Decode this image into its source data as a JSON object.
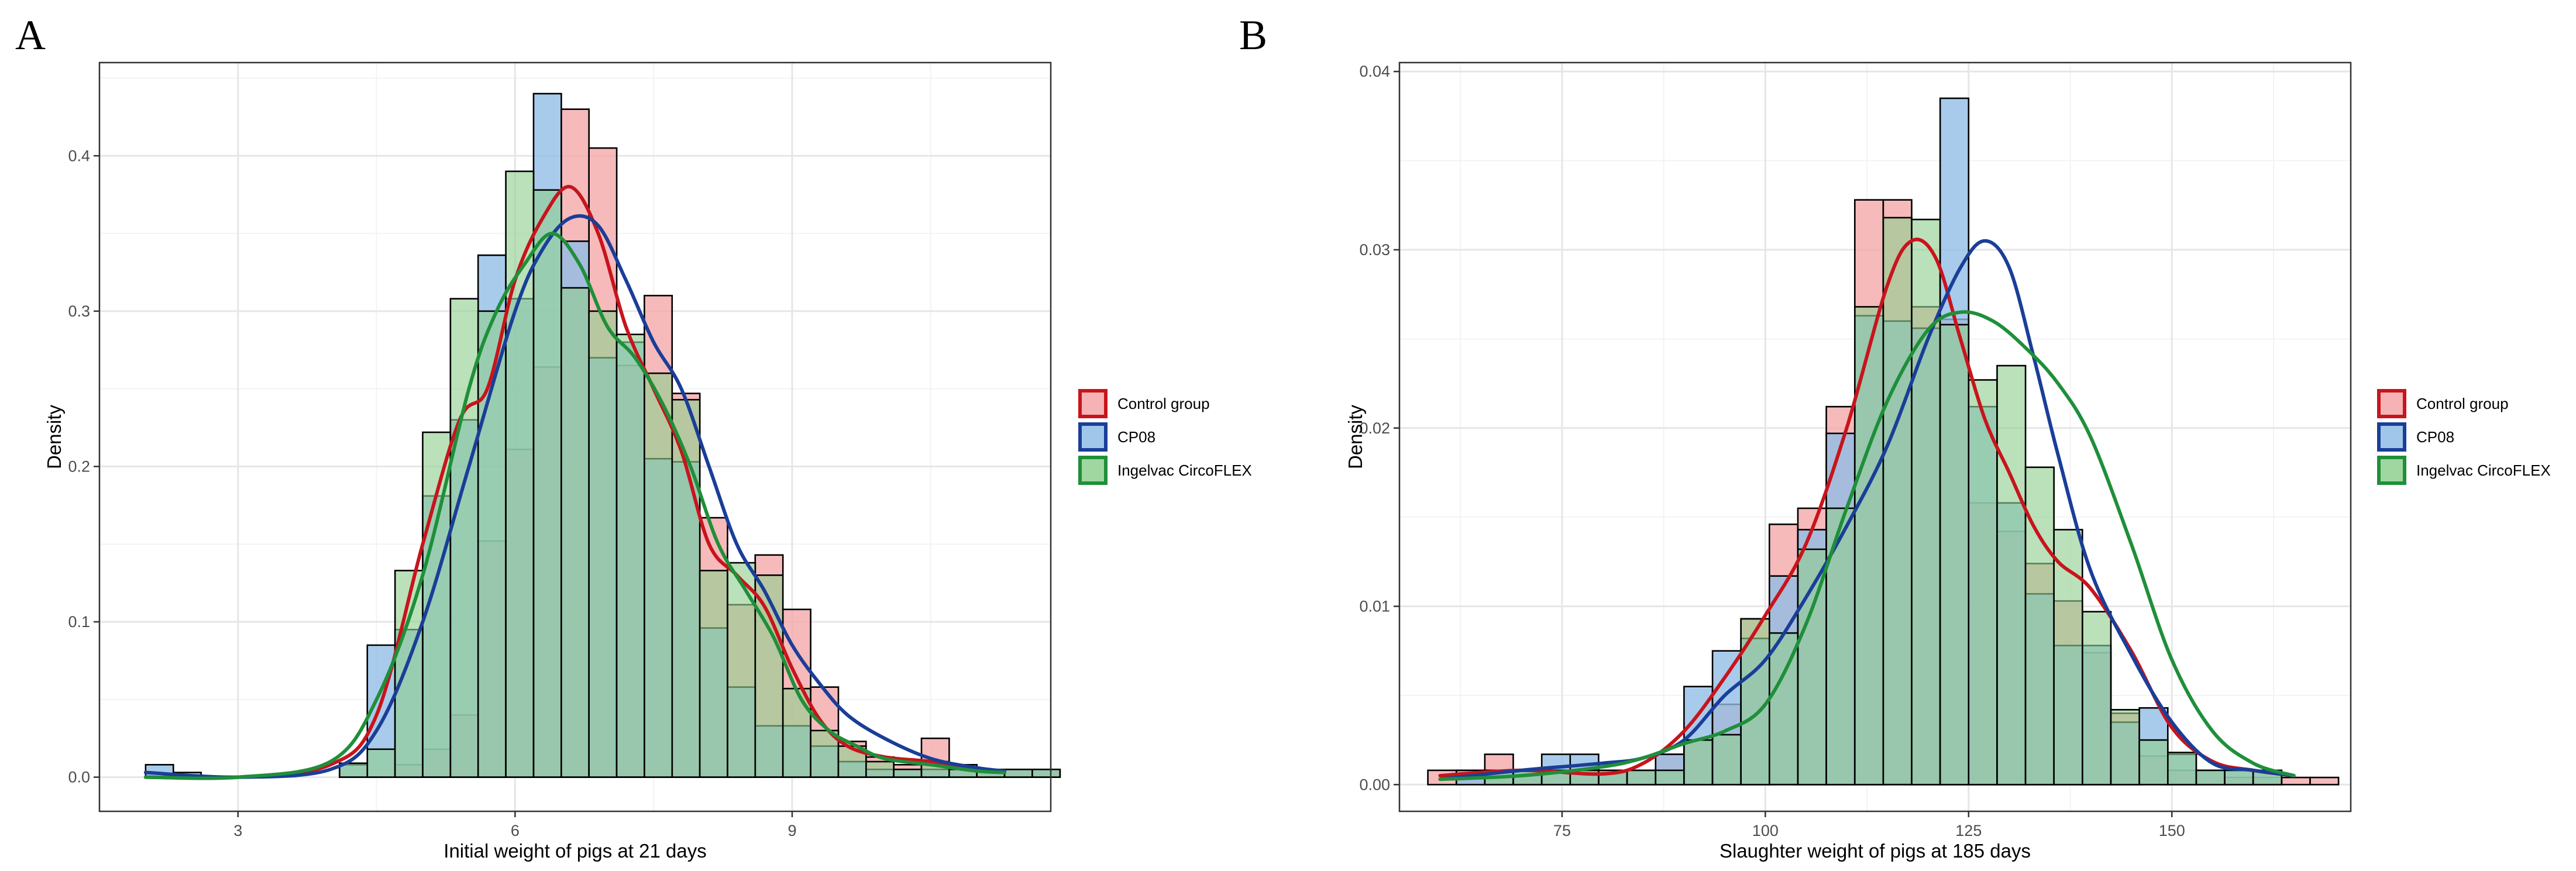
{
  "colors": {
    "control_fill": "#f4a6a8",
    "cp08_fill": "#8fbde6",
    "circoflex_fill": "#8fcf8f",
    "control_line": "#c8141c",
    "cp08_line": "#1a3e98",
    "circoflex_line": "#1f8f3a",
    "grid_major": "#e6e6e6",
    "grid_minor": "#f3f3f3",
    "frame": "#333333"
  },
  "chart_data": [
    {
      "type": "histogram",
      "panel_label": "A",
      "title": "",
      "xlabel": "Initial weight of pigs at 21 days",
      "ylabel": "Density",
      "xlim": [
        1.5,
        11.8
      ],
      "ylim": [
        -0.022,
        0.46
      ],
      "xticks": [
        3,
        6,
        9
      ],
      "yticks": [
        0.0,
        0.1,
        0.2,
        0.3,
        0.4
      ],
      "ytick_labels": [
        "0.0",
        "0.1",
        "0.2",
        "0.3",
        "0.4"
      ],
      "bin_start": 2.0,
      "bin_width": 0.3,
      "legend": [
        {
          "label": "Control group",
          "key": "control"
        },
        {
          "label": "CP08",
          "key": "cp08"
        },
        {
          "label": "Ingelvac CircoFLEX",
          "key": "circoflex"
        }
      ],
      "series": [
        {
          "name": "Control group",
          "values": [
            0,
            0,
            0,
            0,
            0,
            0,
            0,
            0,
            0,
            0.008,
            0.018,
            0.04,
            0.152,
            0.211,
            0.264,
            0.43,
            0.405,
            0.265,
            0.31,
            0.247,
            0.167,
            0.111,
            0.143,
            0.108,
            0.058,
            0.023,
            0.013,
            0.008,
            0.025,
            0.008,
            0.005,
            0.005,
            0.005
          ],
          "density": {
            "x": [
              2.0,
              3.0,
              4.0,
              4.5,
              5.0,
              5.4,
              5.7,
              6.0,
              6.3,
              6.6,
              6.9,
              7.2,
              7.5,
              7.8,
              8.1,
              8.4,
              8.7,
              9.0,
              9.3,
              9.6,
              10.0,
              10.5,
              11.0,
              11.3
            ],
            "y": [
              0.0,
              0.0,
              0.008,
              0.04,
              0.15,
              0.23,
              0.25,
              0.32,
              0.36,
              0.38,
              0.35,
              0.29,
              0.25,
              0.21,
              0.15,
              0.13,
              0.11,
              0.07,
              0.037,
              0.02,
              0.013,
              0.01,
              0.005,
              0.003
            ]
          }
        },
        {
          "name": "CP08",
          "values": [
            0.008,
            0.003,
            0,
            0,
            0,
            0,
            0,
            0.008,
            0.085,
            0.095,
            0.181,
            0.23,
            0.336,
            0.308,
            0.44,
            0.345,
            0.27,
            0.28,
            0.205,
            0.203,
            0.096,
            0.058,
            0.033,
            0.033,
            0.02,
            0.01,
            0.005,
            0.005,
            0.005,
            0.005,
            0.005,
            0.005,
            0.005
          ],
          "density": {
            "x": [
              2.0,
              3.0,
              4.0,
              4.5,
              5.0,
              5.5,
              6.0,
              6.3,
              6.6,
              6.9,
              7.2,
              7.5,
              7.8,
              8.1,
              8.4,
              8.7,
              9.0,
              9.3,
              9.6,
              10.0,
              10.5,
              11.0,
              11.3
            ],
            "y": [
              0.003,
              0.0,
              0.005,
              0.03,
              0.1,
              0.2,
              0.3,
              0.34,
              0.36,
              0.355,
              0.32,
              0.28,
              0.25,
              0.2,
              0.15,
              0.12,
              0.085,
              0.06,
              0.04,
              0.025,
              0.012,
              0.006,
              0.004
            ]
          }
        },
        {
          "name": "Ingelvac CircoFLEX",
          "values": [
            0,
            0,
            0,
            0,
            0,
            0,
            0,
            0.009,
            0.018,
            0.133,
            0.222,
            0.308,
            0.3,
            0.39,
            0.378,
            0.315,
            0.3,
            0.285,
            0.26,
            0.243,
            0.133,
            0.138,
            0.13,
            0.057,
            0.03,
            0.02,
            0.01,
            0.005,
            0.01,
            0.005,
            0.005,
            0.005,
            0.005
          ],
          "density": {
            "x": [
              2.0,
              3.0,
              4.0,
              4.5,
              5.0,
              5.5,
              5.8,
              6.1,
              6.4,
              6.7,
              7.0,
              7.3,
              7.6,
              7.9,
              8.2,
              8.5,
              8.8,
              9.1,
              9.4,
              9.7,
              10.0,
              10.5,
              11.0,
              11.3
            ],
            "y": [
              0.0,
              0.0,
              0.01,
              0.05,
              0.13,
              0.25,
              0.3,
              0.33,
              0.35,
              0.33,
              0.29,
              0.27,
              0.24,
              0.2,
              0.15,
              0.12,
              0.09,
              0.05,
              0.03,
              0.02,
              0.012,
              0.008,
              0.004,
              0.003
            ]
          }
        }
      ]
    },
    {
      "type": "histogram",
      "panel_label": "B",
      "title": "",
      "xlabel": "Slaughter weight of pigs at 185 days",
      "ylabel": "Density",
      "xlim": [
        55,
        172
      ],
      "ylim": [
        -0.0015,
        0.0405
      ],
      "xticks": [
        75,
        100,
        125,
        150
      ],
      "yticks": [
        0.0,
        0.01,
        0.02,
        0.03,
        0.04
      ],
      "ytick_labels": [
        "0.00",
        "0.01",
        "0.02",
        "0.03",
        "0.04"
      ],
      "bin_start": 58.5,
      "bin_width": 3.5,
      "legend": [
        {
          "label": "Control group",
          "key": "control"
        },
        {
          "label": "CP08",
          "key": "cp08"
        },
        {
          "label": "Ingelvac CircoFLEX",
          "key": "circoflex"
        }
      ],
      "series": [
        {
          "name": "Control group",
          "values": [
            0.0008,
            0.0008,
            0.0017,
            0.0008,
            0.0008,
            0.0008,
            0.0008,
            0.0008,
            0.0017,
            0.0025,
            0.0045,
            0.0093,
            0.0146,
            0.0155,
            0.0212,
            0.0328,
            0.0328,
            0.0268,
            0.0261,
            0.0158,
            0.0142,
            0.0124,
            0.0103,
            0.0074,
            0.004,
            0.0016,
            0.0008,
            0.0008,
            0.0004,
            0.0004,
            0.0004,
            0.0004
          ],
          "density": {
            "x": [
              60,
              70,
              80,
              85,
              90,
              95,
              100,
              105,
              110,
              115,
              118,
              121,
              124,
              127,
              130,
              133,
              136,
              140,
              145,
              150,
              155,
              160,
              165
            ],
            "y": [
              0.0005,
              0.0008,
              0.0006,
              0.0012,
              0.003,
              0.006,
              0.0095,
              0.0135,
              0.02,
              0.028,
              0.0305,
              0.0295,
              0.025,
              0.0205,
              0.0175,
              0.0145,
              0.0125,
              0.011,
              0.0075,
              0.0032,
              0.0013,
              0.0008,
              0.0005
            ]
          }
        },
        {
          "name": "CP08",
          "values": [
            0,
            0.0008,
            0.0008,
            0.0008,
            0.0017,
            0.0017,
            0.0008,
            0.0008,
            0.0017,
            0.0055,
            0.0075,
            0.0082,
            0.0117,
            0.0143,
            0.0197,
            0.0263,
            0.026,
            0.0256,
            0.0385,
            0.0212,
            0.0158,
            0.0107,
            0.0078,
            0.0078,
            0.0035,
            0.0043,
            0.0017,
            0.0008,
            0.0008,
            0.0008
          ],
          "density": {
            "x": [
              60,
              70,
              80,
              85,
              90,
              95,
              100,
              105,
              110,
              115,
              120,
              124,
              127,
              130,
              133,
              136,
              140,
              145,
              150,
              155,
              160,
              165
            ],
            "y": [
              0.0003,
              0.0008,
              0.0012,
              0.0015,
              0.0025,
              0.005,
              0.007,
              0.0105,
              0.0145,
              0.019,
              0.025,
              0.029,
              0.0305,
              0.029,
              0.024,
              0.0185,
              0.012,
              0.0073,
              0.0035,
              0.0012,
              0.0008,
              0.0005
            ]
          }
        },
        {
          "name": "Ingelvac CircoFLEX",
          "values": [
            0,
            0,
            0.0008,
            0.0008,
            0.0008,
            0.0008,
            0.0008,
            0.0008,
            0.0008,
            0.0025,
            0.0028,
            0.0093,
            0.0085,
            0.0132,
            0.0155,
            0.0268,
            0.0318,
            0.0317,
            0.0258,
            0.0227,
            0.0235,
            0.0178,
            0.0143,
            0.0097,
            0.0042,
            0.0025,
            0.0018,
            0.0008,
            0.0008,
            0.0008
          ],
          "density": {
            "x": [
              60,
              70,
              80,
              85,
              90,
              95,
              100,
              105,
              110,
              115,
              120,
              124,
              128,
              132,
              136,
              140,
              145,
              150,
              155,
              160,
              165
            ],
            "y": [
              0.0003,
              0.0005,
              0.001,
              0.0015,
              0.0023,
              0.003,
              0.0045,
              0.009,
              0.0155,
              0.0215,
              0.0255,
              0.0265,
              0.026,
              0.0245,
              0.0225,
              0.0195,
              0.0135,
              0.007,
              0.003,
              0.0012,
              0.0005
            ]
          }
        }
      ]
    }
  ]
}
